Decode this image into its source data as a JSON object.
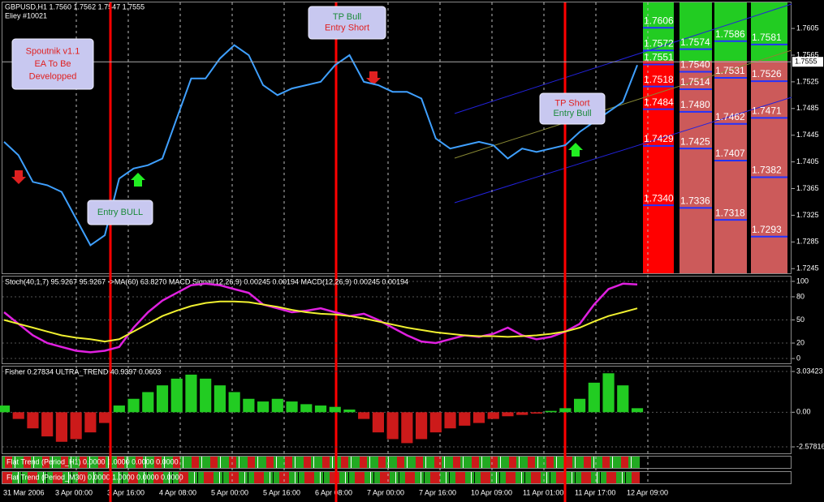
{
  "header": {
    "symbol": "GBPUSD,H1 1.7560 1.7562 1.7547 1.7555",
    "account": "Eliey #10021"
  },
  "flat_trend": [
    "Flat Trend (Period_H1) 0.0000 1.0000 0.0000 0.0000",
    "Flat Trend (Period_M30) 0.0000 1.0000 0.0000 0.0000"
  ],
  "chart_data": [
    {
      "type": "line",
      "color": "#3fa0ff",
      "values": [
        1.7435,
        1.7415,
        1.7375,
        1.737,
        1.736,
        1.732,
        1.728,
        1.7295,
        1.738,
        1.7395,
        1.74,
        1.741,
        1.747,
        1.753,
        1.753,
        1.756,
        1.758,
        1.7565,
        1.752,
        1.7505,
        1.7515,
        1.752,
        1.7525,
        1.755,
        1.7565,
        1.7525,
        1.752,
        1.751,
        1.751,
        1.75,
        1.744,
        1.7425,
        1.743,
        1.7435,
        1.743,
        1.741,
        1.7425,
        1.742,
        1.7425,
        1.743,
        1.745,
        1.7465,
        1.748,
        1.7495,
        1.755
      ],
      "ylim": [
        1.7238,
        1.7644
      ],
      "yticks": [
        1.7605,
        1.7565,
        1.7525,
        1.7485,
        1.7445,
        1.7405,
        1.7365,
        1.7325,
        1.7285,
        1.7245
      ],
      "current_price": 1.7555,
      "time_labels": [
        "31 Mar 2006",
        "3 Apr 00:00",
        "3 Apr 16:00",
        "4 Apr 08:00",
        "5 Apr 00:00",
        "5 Apr 16:00",
        "6 Apr 08:00",
        "7 Apr 00:00",
        "7 Apr 16:00",
        "10 Apr 09:00",
        "11 Apr 01:00",
        "11 Apr 17:00",
        "12 Apr 09:00"
      ],
      "annotations": [
        [
          "Spoutnik v1.1",
          "EA To Be",
          "Developped"
        ],
        [
          "TP Bull",
          "Entry Short"
        ],
        [
          "Entry BULL"
        ],
        [
          "TP Short",
          "Entry Bull"
        ]
      ],
      "levels": [
        [
          1.7606,
          1.7572,
          1.7551,
          1.7518,
          1.7484,
          1.7429,
          {
            "value": 1.734,
            "label": "1.7340"
          }
        ],
        [
          1.7574,
          {
            "value": 1.754,
            "label": "1.7540"
          },
          1.7514,
          {
            "value": 1.748,
            "label": "1.7480"
          },
          1.7425,
          1.7336
        ],
        [
          1.7586,
          1.7531,
          1.7462,
          1.7407,
          1.7318
        ],
        [
          1.7581,
          1.7526,
          1.7471,
          1.7382,
          1.7293
        ]
      ]
    },
    {
      "type": "line",
      "title": "Stoch(40,1,7) 95.9267 95.9267 ->MA(60) 63.8270 MACD Signal(12,26,9) 0.00245 0.00194 MACD(12,26,9) 0.00245 0.00194",
      "ylim": [
        -6.25,
        106.25
      ],
      "yticks": [
        100,
        80,
        50,
        20,
        0
      ],
      "series": [
        {
          "color": "#e020e0",
          "values": [
            60,
            45,
            30,
            20,
            15,
            10,
            8,
            10,
            15,
            40,
            60,
            75,
            85,
            95,
            97,
            95,
            90,
            85,
            70,
            65,
            60,
            62,
            65,
            60,
            55,
            58,
            50,
            40,
            30,
            22,
            20,
            25,
            30,
            28,
            32,
            40,
            30,
            25,
            28,
            35,
            45,
            70,
            90,
            97,
            96
          ]
        },
        {
          "color": "#f0f030",
          "values": [
            50,
            45,
            40,
            35,
            30,
            27,
            25,
            22,
            25,
            35,
            45,
            55,
            62,
            68,
            72,
            74,
            74,
            73,
            70,
            67,
            63,
            60,
            58,
            57,
            55,
            52,
            48,
            44,
            40,
            37,
            34,
            32,
            30,
            29,
            29,
            28,
            29,
            30,
            32,
            35,
            40,
            48,
            55,
            60,
            65
          ]
        }
      ]
    },
    {
      "type": "bar",
      "title": "Fisher 0.27834 ULTRA_TREND 40.9397 0.0603",
      "ylim": [
        -3.06,
        3.4
      ],
      "yticks": [
        3.03423,
        {
          "value": 0,
          "label": "0.00"
        },
        -2.57816
      ],
      "colors": {
        "positive": "#22cc22",
        "negative": "#cc1a1a"
      },
      "values": [
        0.5,
        -0.5,
        -1.2,
        -1.8,
        -2.2,
        -2.0,
        -1.5,
        -0.8,
        0.5,
        1.0,
        1.5,
        2.0,
        2.5,
        2.8,
        2.5,
        2.0,
        1.5,
        1.0,
        0.8,
        1.0,
        0.8,
        0.6,
        0.5,
        0.4,
        0.2,
        -0.5,
        -1.5,
        -2.0,
        -2.3,
        -2.0,
        -1.5,
        -1.2,
        -1.0,
        -0.8,
        -0.5,
        -0.3,
        -0.2,
        -0.1,
        0.1,
        0.3,
        1.0,
        2.2,
        2.9,
        2.0,
        0.3
      ]
    }
  ]
}
